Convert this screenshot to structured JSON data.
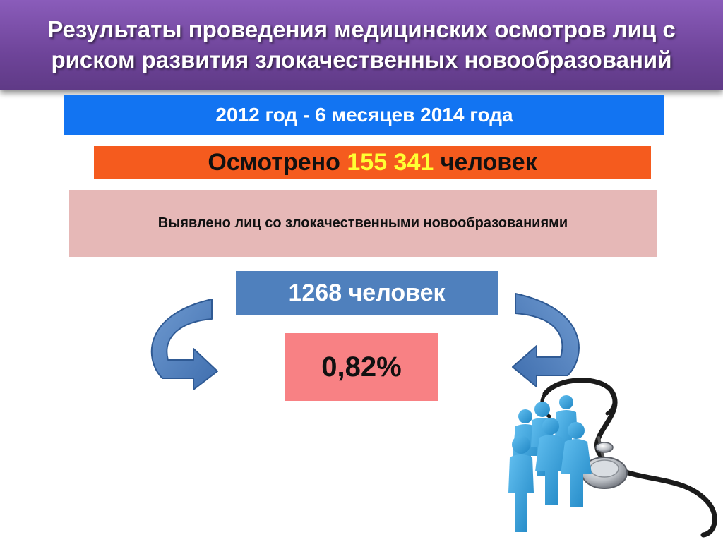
{
  "title": "Результаты проведения медицинских осмотров лиц с риском развития злокачественных новообразований",
  "period": "2012 год - 6 месяцев 2014 года",
  "examined": {
    "prefix": "Осмотрено ",
    "value": "155 341",
    "suffix": " человек"
  },
  "detected_label": "Выявлено лиц со злокачественными новообразованиями",
  "detected_count": "1268 человек",
  "detected_percent": "0,82%",
  "colors": {
    "title_banner": "#7a4fa8",
    "period_box": "#1274f2",
    "examined_box": "#f55b1e",
    "examined_value": "#ffff33",
    "detected_box": "#e6b8b7",
    "count_box": "#4f80bd",
    "percent_box": "#f88184",
    "arrows": "#4f80bd",
    "people": "#3a9fd8"
  },
  "icons": [
    "curved-arrow-left-icon",
    "curved-arrow-right-icon",
    "people-group-icon",
    "stethoscope-icon"
  ]
}
